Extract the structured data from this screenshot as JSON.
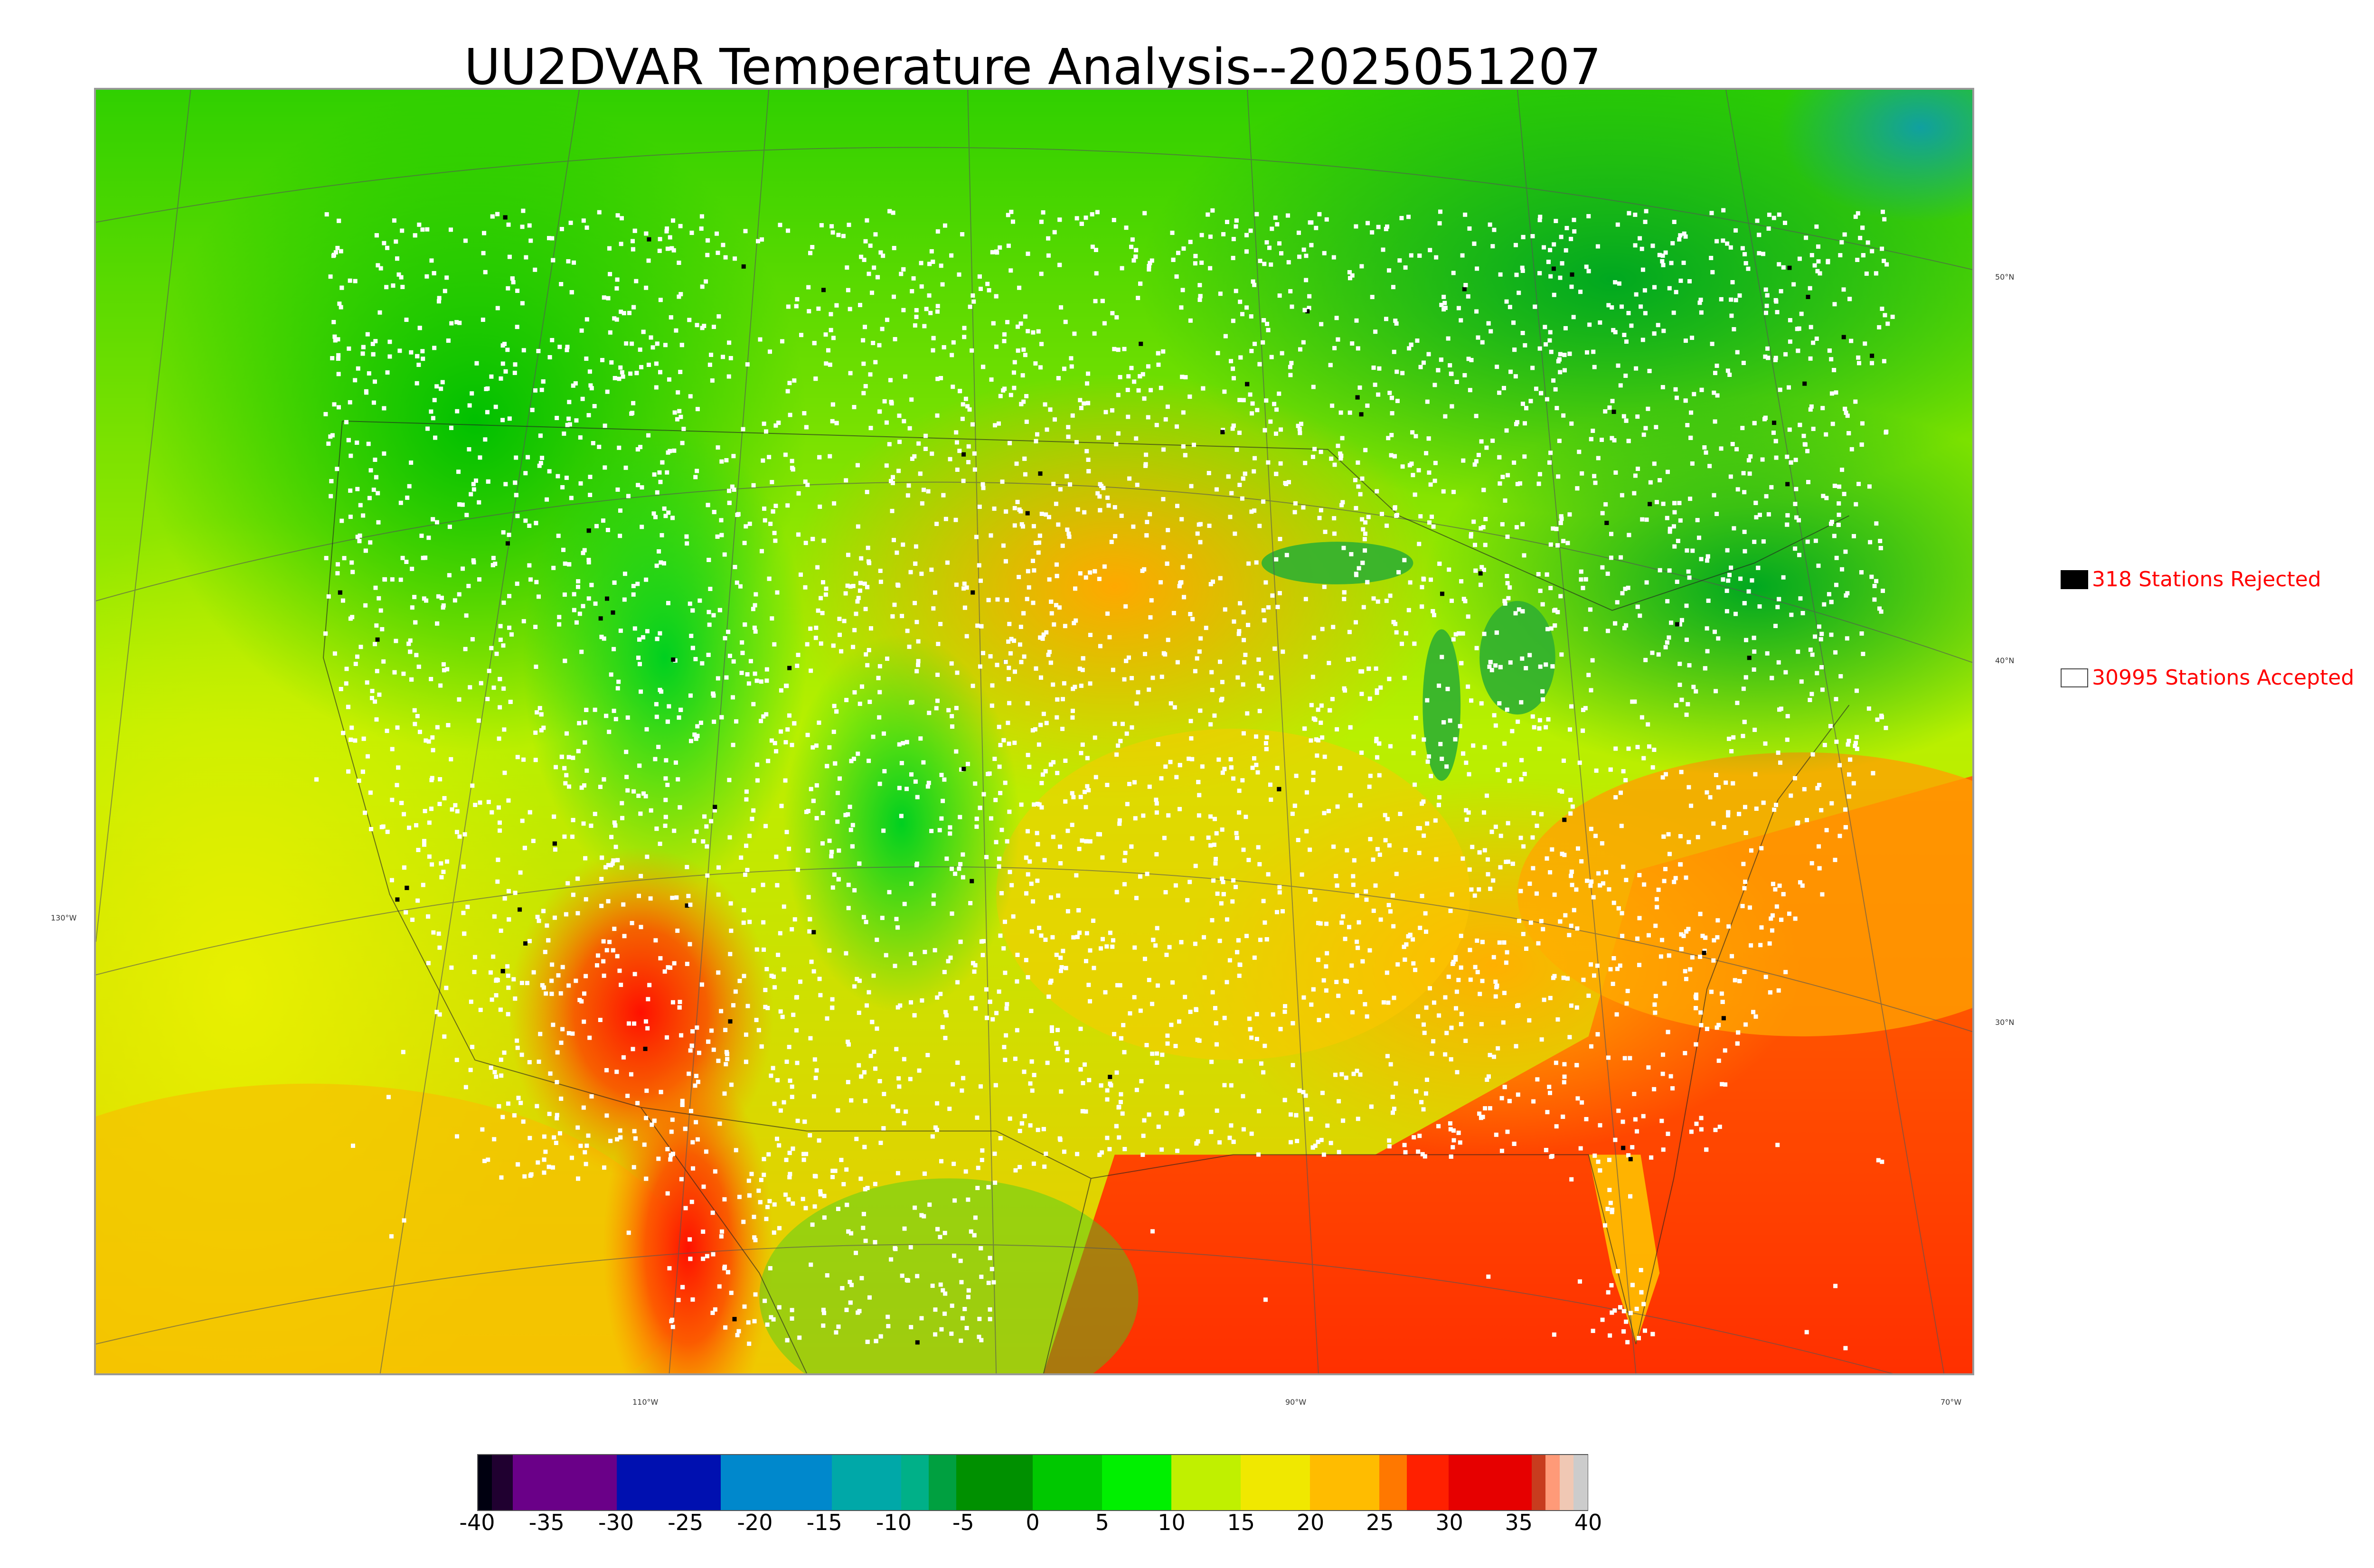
{
  "title": "UU2DVAR Temperature Analysis--2025051207",
  "map": {
    "lat_labels": [
      "50°N",
      "40°N",
      "30°N"
    ],
    "lon_labels": [
      "130°W",
      "110°W",
      "90°W",
      "70°W"
    ],
    "colors": {
      "ocean_warm": "#ff6a00",
      "ocean_hot": "#ff3800",
      "land_cool": "#00c800",
      "land_mild": "#c8f000",
      "land_warm": "#ffb000",
      "desert_hot": "#ff2000",
      "canada": "#10a010",
      "arctic": "#10a0a0",
      "station_accepted": "#ffffff",
      "station_rejected": "#000000"
    }
  },
  "legend": {
    "rejected_label": "318 Stations Rejected",
    "accepted_label": "30995 Stations Accepted",
    "rejected_count": 318,
    "accepted_count": 30995
  },
  "colorbar": {
    "ticks": [
      "-40",
      "-35",
      "-30",
      "-25",
      "-20",
      "-15",
      "-10",
      "-5",
      "0",
      "5",
      "10",
      "15",
      "20",
      "25",
      "30",
      "35",
      "40"
    ],
    "min": -40,
    "max": 40,
    "segments": [
      {
        "from": -40,
        "to": -39,
        "color": "#000010"
      },
      {
        "from": -39,
        "to": -37.5,
        "color": "#200030"
      },
      {
        "from": -37.5,
        "to": -30,
        "color": "#6a0088"
      },
      {
        "from": -30,
        "to": -22.5,
        "color": "#0010b0"
      },
      {
        "from": -22.5,
        "to": -14.5,
        "color": "#0088cc"
      },
      {
        "from": -14.5,
        "to": -9.5,
        "color": "#00a8a8"
      },
      {
        "from": -9.5,
        "to": -7.5,
        "color": "#00b088"
      },
      {
        "from": -7.5,
        "to": -5.5,
        "color": "#00a040"
      },
      {
        "from": -5.5,
        "to": 0,
        "color": "#009000"
      },
      {
        "from": 0,
        "to": 5,
        "color": "#00c800"
      },
      {
        "from": 5,
        "to": 10,
        "color": "#00f000"
      },
      {
        "from": 10,
        "to": 15,
        "color": "#c0f000"
      },
      {
        "from": 15,
        "to": 20,
        "color": "#f0e800"
      },
      {
        "from": 20,
        "to": 25,
        "color": "#ffbc00"
      },
      {
        "from": 25,
        "to": 27,
        "color": "#ff7800"
      },
      {
        "from": 27,
        "to": 30,
        "color": "#ff2000"
      },
      {
        "from": 30,
        "to": 36,
        "color": "#e60000"
      },
      {
        "from": 36,
        "to": 37,
        "color": "#c83c1e"
      },
      {
        "from": 37,
        "to": 38,
        "color": "#ff9a78"
      },
      {
        "from": 38,
        "to": 39,
        "color": "#f0c8b4"
      },
      {
        "from": 39,
        "to": 40,
        "color": "#cccccc"
      }
    ]
  }
}
